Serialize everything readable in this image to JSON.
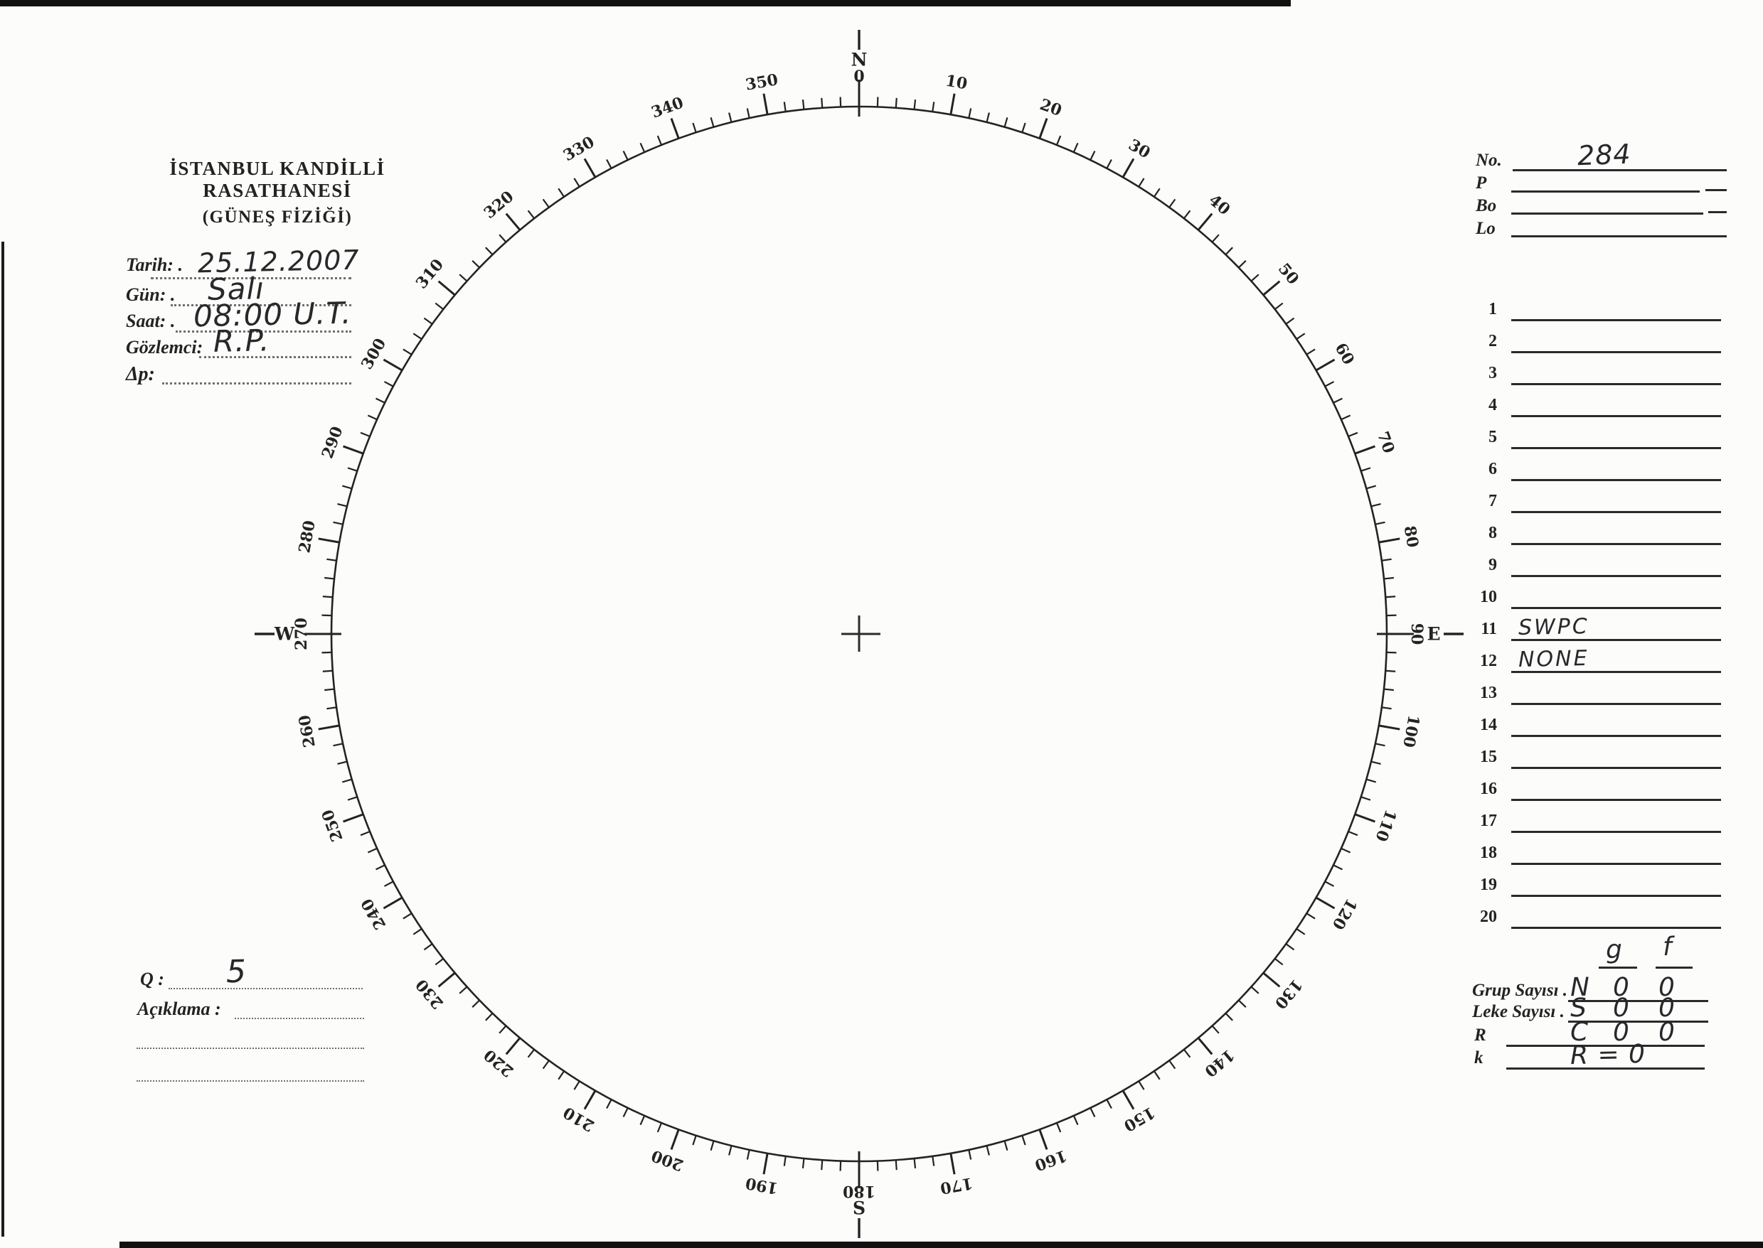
{
  "header": {
    "org_line1": "İSTANBUL KANDİLLİ RASATHANESİ",
    "org_line2": "(GÜNEŞ FİZİĞİ)"
  },
  "form": {
    "fields": [
      {
        "id": "tarih",
        "label": "Tarih: .",
        "value": "25.12.2007"
      },
      {
        "id": "gun",
        "label": "Gün: .",
        "value": "Salı"
      },
      {
        "id": "saat",
        "label": "Saat: .",
        "value": "08:00 U.T."
      },
      {
        "id": "gozlemci",
        "label": "Gözlemci:",
        "value": "R.P."
      },
      {
        "id": "dp",
        "label": "Δp:",
        "value": ""
      }
    ]
  },
  "dial": {
    "tick_step_deg": 2,
    "major_step_deg": 10,
    "label_step_deg": 10,
    "cardinals": [
      {
        "deg": 0,
        "letter": "N",
        "number": "0"
      },
      {
        "deg": 90,
        "letter": "E",
        "number": "90"
      },
      {
        "deg": 180,
        "letter": "S",
        "number": "180"
      },
      {
        "deg": 270,
        "letter": "W",
        "number": "270"
      }
    ]
  },
  "right_panel": {
    "id_fields": [
      {
        "label": "No.",
        "value": "284"
      },
      {
        "label": "P",
        "value": ""
      },
      {
        "label": "Bo",
        "value": ""
      },
      {
        "label": "Lo",
        "value": ""
      }
    ],
    "numbered_rows": [
      {
        "num": "1",
        "value": ""
      },
      {
        "num": "2",
        "value": ""
      },
      {
        "num": "3",
        "value": ""
      },
      {
        "num": "4",
        "value": ""
      },
      {
        "num": "5",
        "value": ""
      },
      {
        "num": "6",
        "value": ""
      },
      {
        "num": "7",
        "value": ""
      },
      {
        "num": "8",
        "value": ""
      },
      {
        "num": "9",
        "value": ""
      },
      {
        "num": "10",
        "value": ""
      },
      {
        "num": "11",
        "value": "SWPC"
      },
      {
        "num": "12",
        "value": "NONE"
      },
      {
        "num": "13",
        "value": ""
      },
      {
        "num": "14",
        "value": ""
      },
      {
        "num": "15",
        "value": ""
      },
      {
        "num": "16",
        "value": ""
      },
      {
        "num": "17",
        "value": ""
      },
      {
        "num": "18",
        "value": ""
      },
      {
        "num": "19",
        "value": ""
      },
      {
        "num": "20",
        "value": ""
      }
    ],
    "summary": {
      "col_headers": [
        "g",
        "f"
      ],
      "rows": [
        {
          "label": "Grup Sayısı .",
          "letter": "N",
          "g": "0",
          "f": "0"
        },
        {
          "label": "Leke Sayısı .",
          "letter": "S",
          "g": "0",
          "f": "0"
        },
        {
          "label": "R",
          "letter": "C",
          "g": "0",
          "f": "0"
        },
        {
          "label": "k",
          "letter": "R = 0",
          "g": "",
          "f": ""
        }
      ]
    }
  },
  "bottom_left": {
    "q_label": "Q :",
    "q_value": "5",
    "aciklama_label": "Açıklama :"
  }
}
